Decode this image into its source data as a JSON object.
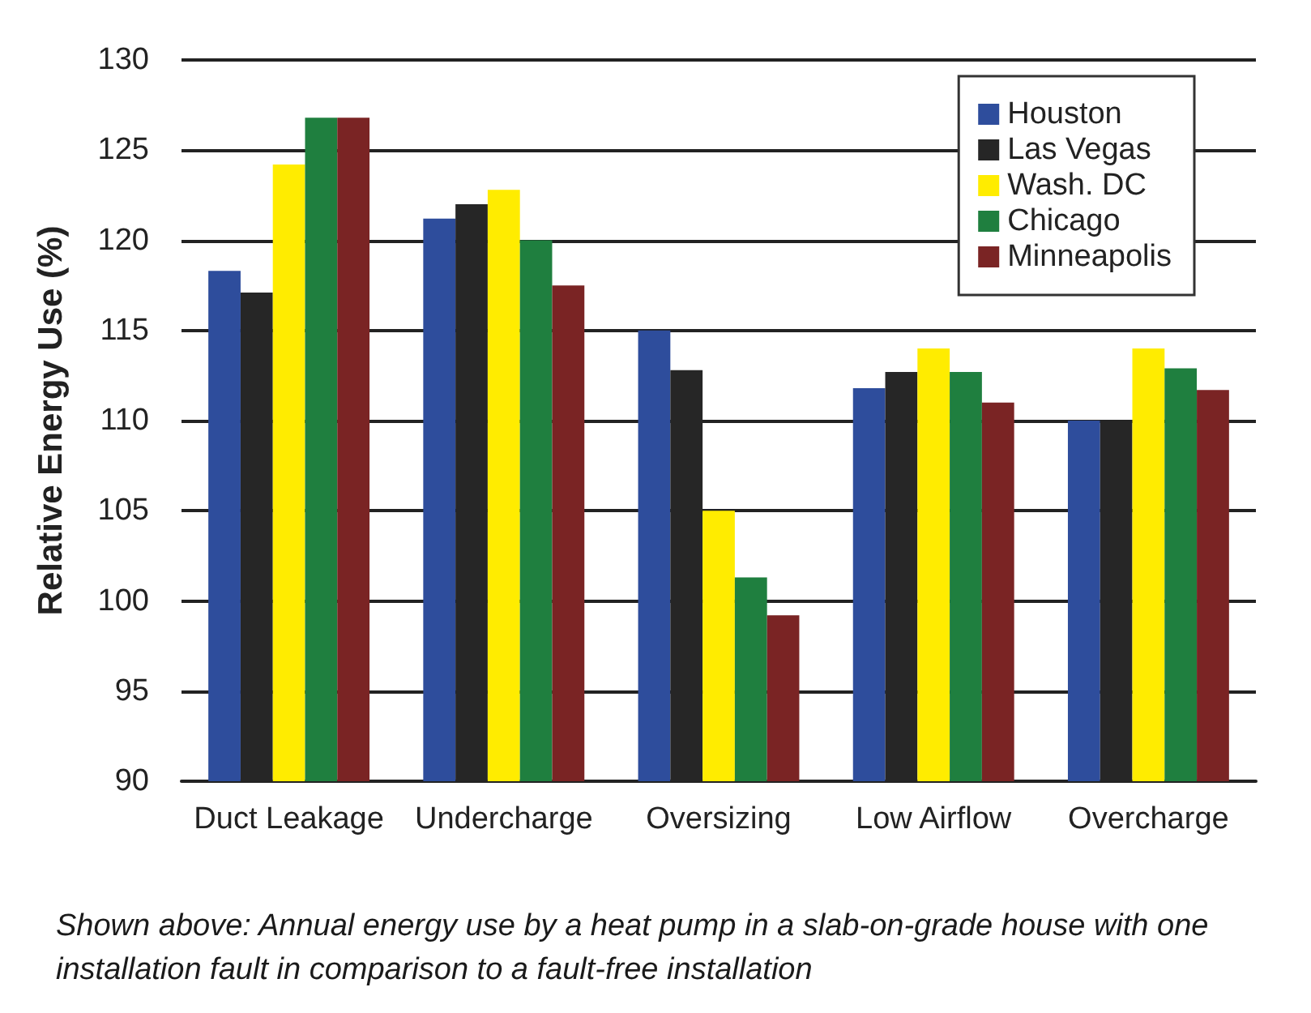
{
  "chart_data": {
    "type": "bar",
    "ylabel": "Relative Energy Use (%)",
    "categories": [
      "Duct Leakage",
      "Undercharge",
      "Oversizing",
      "Low Airflow",
      "Overcharge"
    ],
    "series": [
      {
        "name": "Houston",
        "color": "#2e4d9c",
        "values": [
          118.3,
          121.2,
          115.0,
          111.8,
          110.0
        ]
      },
      {
        "name": "Las Vegas",
        "color": "#262626",
        "values": [
          117.1,
          122.0,
          112.8,
          112.7,
          110.0
        ]
      },
      {
        "name": "Wash. DC",
        "color": "#ffec00",
        "values": [
          124.2,
          122.8,
          105.0,
          114.0,
          114.0
        ]
      },
      {
        "name": "Chicago",
        "color": "#1f7f3f",
        "values": [
          126.8,
          120.0,
          101.3,
          112.7,
          112.9
        ]
      },
      {
        "name": "Minneapolis",
        "color": "#7a2424",
        "values": [
          126.8,
          117.5,
          99.2,
          111.0,
          111.7
        ]
      }
    ],
    "ylim": [
      90,
      130
    ],
    "yticks": [
      90,
      95,
      100,
      105,
      110,
      115,
      120,
      125,
      130
    ],
    "grid": "y",
    "legend": "top right",
    "annotations": [
      "Shown above: Annual energy use by a heat pump in a slab-on-grade house with one installation fault in comparison to a fault-free installation"
    ]
  }
}
